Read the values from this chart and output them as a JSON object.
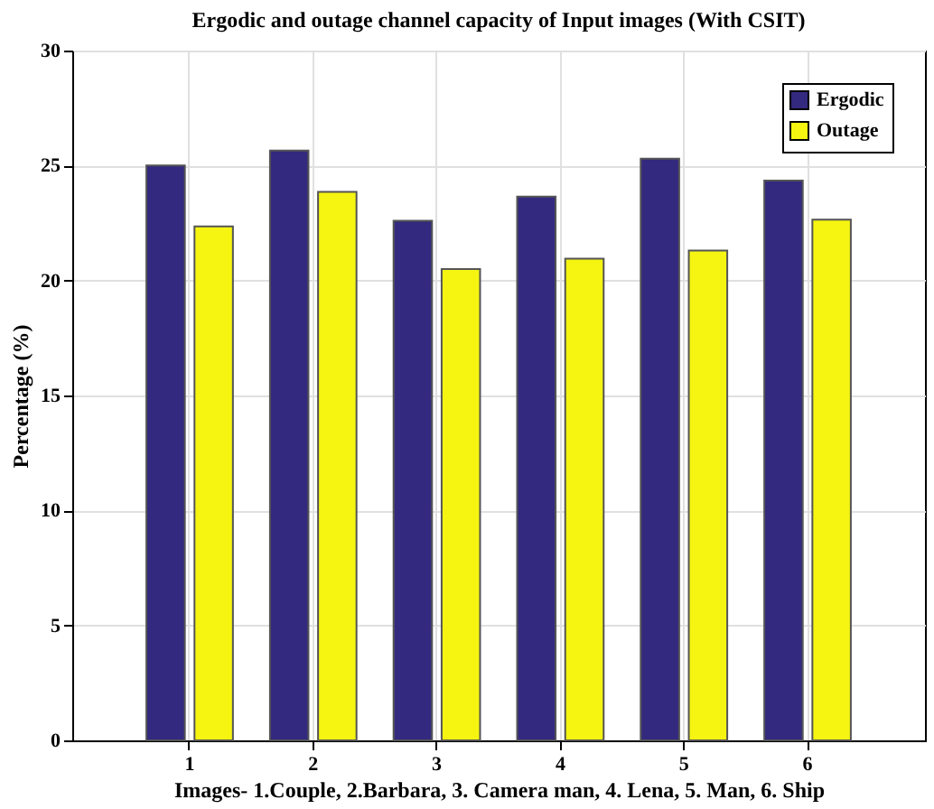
{
  "chart_data": {
    "type": "bar",
    "title": "Ergodic and outage channel capacity of Input images (With CSIT)",
    "xlabel": "Images- 1.Couple, 2.Barbara, 3. Camera man, 4. Lena, 5. Man, 6. Ship",
    "ylabel": "Percentage (%)",
    "categories": [
      "1",
      "2",
      "3",
      "4",
      "5",
      "6"
    ],
    "series": [
      {
        "name": "Ergodic",
        "color": "#33297f",
        "values": [
          25.0,
          25.65,
          22.6,
          23.65,
          25.3,
          24.35
        ]
      },
      {
        "name": "Outage",
        "color": "#f5f511",
        "values": [
          22.35,
          23.85,
          20.5,
          20.95,
          21.3,
          22.65
        ]
      }
    ],
    "ylim": [
      0,
      30
    ],
    "yticks": [
      0,
      5,
      10,
      15,
      20,
      25,
      30
    ],
    "grid": true,
    "legend": "top right"
  }
}
